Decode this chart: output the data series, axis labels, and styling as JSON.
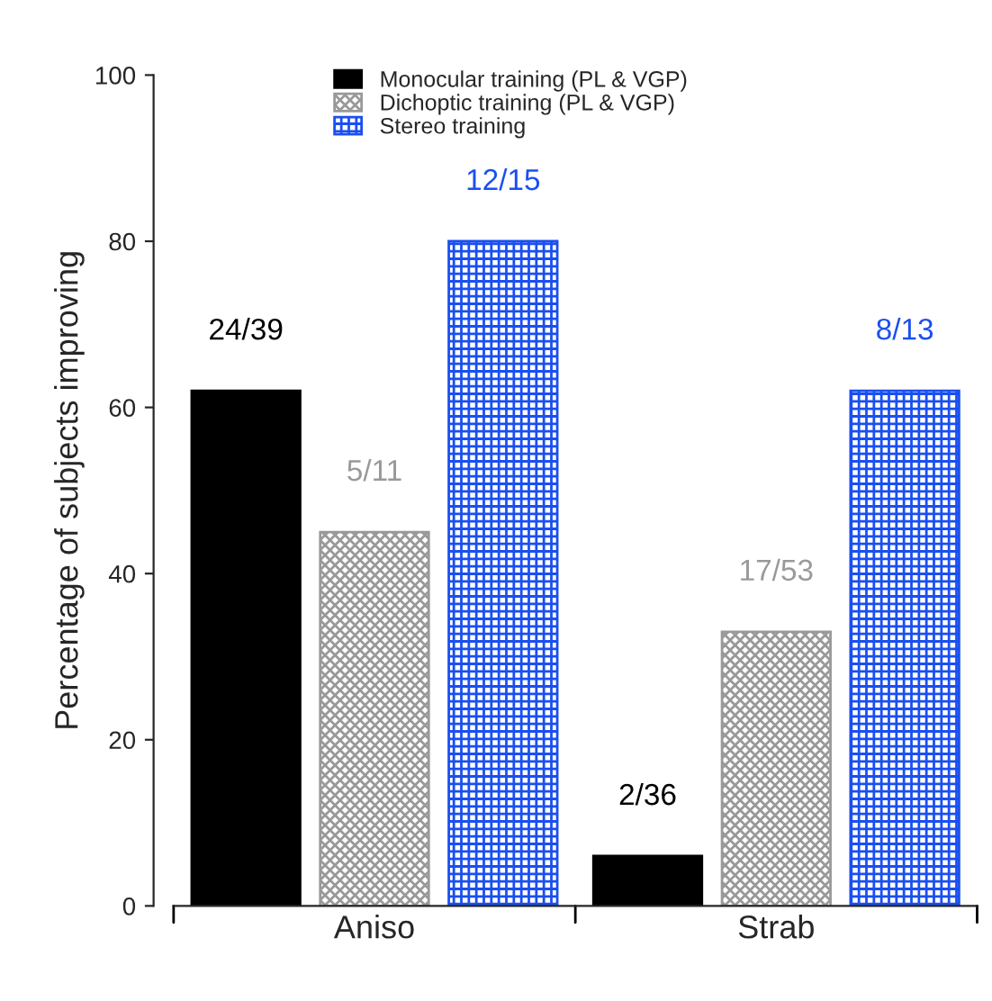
{
  "chart_data": {
    "type": "bar",
    "ylabel": "Percentage of subjects improving",
    "categories": [
      "Aniso",
      "Strab"
    ],
    "ylim": [
      0,
      100
    ],
    "yticks": [
      0,
      20,
      40,
      60,
      80,
      100
    ],
    "legend": "top",
    "grid": false,
    "series": [
      {
        "name": "Monocular training (PL & VGP)",
        "color": "#000000",
        "values": [
          62,
          6
        ],
        "value_labels": [
          "24/39",
          "2/36"
        ]
      },
      {
        "name": "Dichoptic training (PL & VGP)",
        "color": "#999999",
        "values": [
          45,
          33
        ],
        "value_labels": [
          "5/11",
          "17/53"
        ]
      },
      {
        "name": "Stereo training",
        "color": "#1a4ff0",
        "values": [
          80,
          62
        ],
        "value_labels": [
          "12/15",
          "8/13"
        ]
      }
    ]
  }
}
